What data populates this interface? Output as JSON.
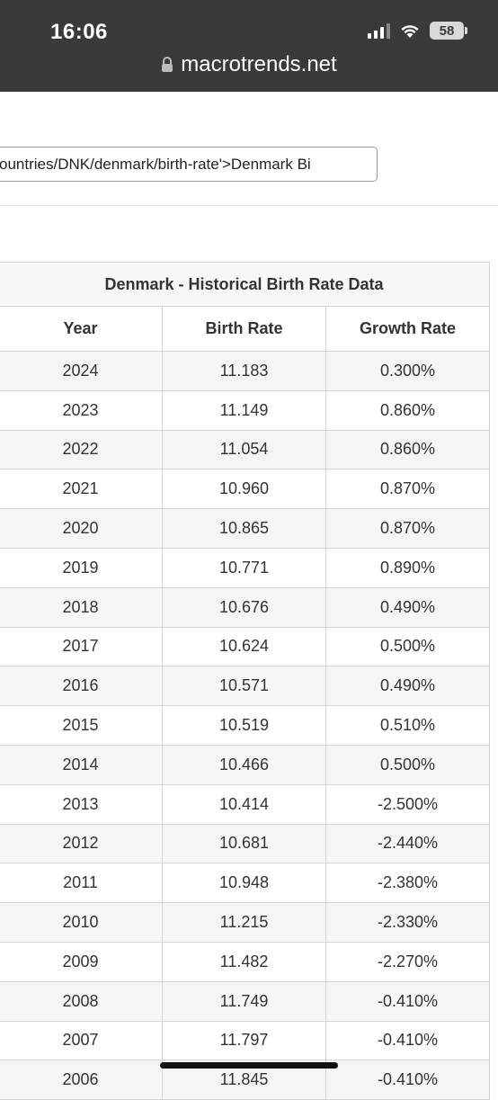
{
  "status_bar": {
    "time": "16:06",
    "battery": "58"
  },
  "browser": {
    "url": "macrotrends.net"
  },
  "snippet": {
    "text": "ountries/DNK/denmark/birth-rate'>Denmark Bi"
  },
  "table": {
    "title": "Denmark - Historical Birth Rate Data",
    "columns": [
      "Year",
      "Birth Rate",
      "Growth Rate"
    ],
    "rows": [
      [
        "2024",
        "11.183",
        "0.300%"
      ],
      [
        "2023",
        "11.149",
        "0.860%"
      ],
      [
        "2022",
        "11.054",
        "0.860%"
      ],
      [
        "2021",
        "10.960",
        "0.870%"
      ],
      [
        "2020",
        "10.865",
        "0.870%"
      ],
      [
        "2019",
        "10.771",
        "0.890%"
      ],
      [
        "2018",
        "10.676",
        "0.490%"
      ],
      [
        "2017",
        "10.624",
        "0.500%"
      ],
      [
        "2016",
        "10.571",
        "0.490%"
      ],
      [
        "2015",
        "10.519",
        "0.510%"
      ],
      [
        "2014",
        "10.466",
        "0.500%"
      ],
      [
        "2013",
        "10.414",
        "-2.500%"
      ],
      [
        "2012",
        "10.681",
        "-2.440%"
      ],
      [
        "2011",
        "10.948",
        "-2.380%"
      ],
      [
        "2010",
        "11.215",
        "-2.330%"
      ],
      [
        "2009",
        "11.482",
        "-2.270%"
      ],
      [
        "2008",
        "11.749",
        "-0.410%"
      ],
      [
        "2007",
        "11.797",
        "-0.410%"
      ],
      [
        "2006",
        "11.845",
        "-0.410%"
      ]
    ]
  }
}
